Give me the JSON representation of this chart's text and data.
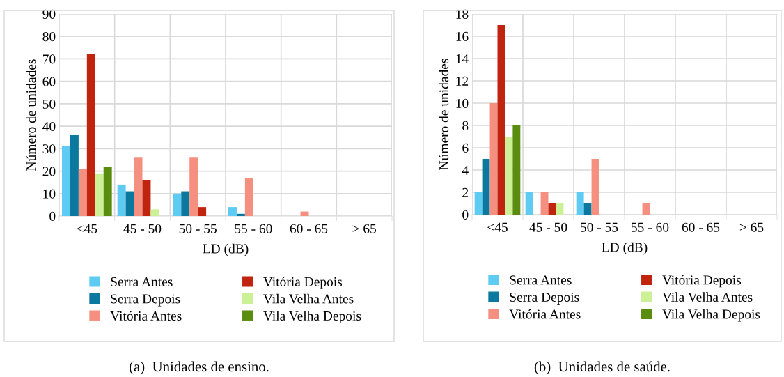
{
  "chart_data": [
    {
      "type": "bar",
      "xlabel": "LD (dB)",
      "ylabel": "Número de unidades",
      "categories": [
        "<45",
        "45 - 50",
        "50 - 55",
        "55 - 60",
        "60 - 65",
        "> 65"
      ],
      "ylim": [
        0,
        90
      ],
      "yticks": [
        0,
        10,
        20,
        30,
        40,
        50,
        60,
        70,
        80,
        90
      ],
      "grid": true,
      "legend": "bottom",
      "annotations": [
        "(a)  Unidades de ensino."
      ],
      "series": [
        {
          "name": "Serra Antes",
          "color": "#5ecbf2",
          "values": [
            31,
            14,
            10,
            4,
            0,
            0
          ]
        },
        {
          "name": "Serra Depois",
          "color": "#0b789f",
          "values": [
            36,
            11,
            11,
            1,
            0,
            0
          ]
        },
        {
          "name": "Vitória Antes",
          "color": "#f58f80",
          "values": [
            21,
            26,
            26,
            17,
            2,
            0
          ]
        },
        {
          "name": "Vitória Depois",
          "color": "#c0240f",
          "values": [
            72,
            16,
            4,
            0,
            0,
            0
          ]
        },
        {
          "name": "Vila Velha Antes",
          "color": "#ccf096",
          "values": [
            19,
            3,
            0,
            0,
            0,
            0
          ]
        },
        {
          "name": "Vila Velha Depois",
          "color": "#5a8c10",
          "values": [
            22,
            0,
            0,
            0,
            0,
            0
          ]
        }
      ]
    },
    {
      "type": "bar",
      "xlabel": "LD (dB)",
      "ylabel": "Número de unidades",
      "categories": [
        "<45",
        "45 - 50",
        "50 - 55",
        "55 - 60",
        "60 - 65",
        "> 65"
      ],
      "ylim": [
        0,
        18
      ],
      "yticks": [
        0,
        2,
        4,
        6,
        8,
        10,
        12,
        14,
        16,
        18
      ],
      "grid": true,
      "legend": "bottom",
      "annotations": [
        "(b)  Unidades de saúde."
      ],
      "series": [
        {
          "name": "Serra Antes",
          "color": "#5ecbf2",
          "values": [
            2,
            2,
            2,
            0,
            0,
            0
          ]
        },
        {
          "name": "Serra Depois",
          "color": "#0b789f",
          "values": [
            5,
            0,
            1,
            0,
            0,
            0
          ]
        },
        {
          "name": "Vitória Antes",
          "color": "#f58f80",
          "values": [
            10,
            2,
            5,
            1,
            0,
            0
          ]
        },
        {
          "name": "Vitória Depois",
          "color": "#c0240f",
          "values": [
            17,
            1,
            0,
            0,
            0,
            0
          ]
        },
        {
          "name": "Vila Velha Antes",
          "color": "#ccf096",
          "values": [
            7,
            1,
            0,
            0,
            0,
            0
          ]
        },
        {
          "name": "Vila Velha Depois",
          "color": "#5a8c10",
          "values": [
            8,
            0,
            0,
            0,
            0,
            0
          ]
        }
      ]
    }
  ]
}
